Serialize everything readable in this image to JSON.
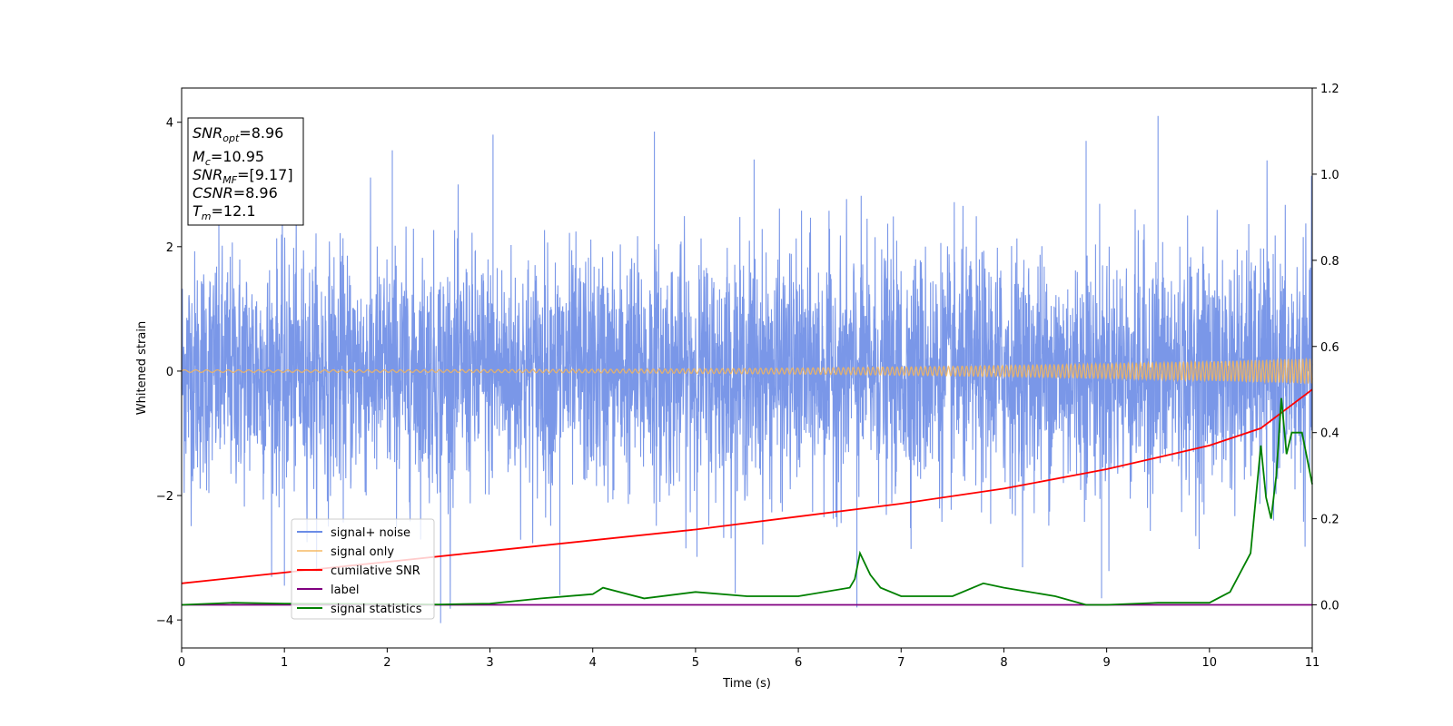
{
  "chart_data": {
    "type": "line",
    "title": "",
    "xlabel": "Time (s)",
    "ylabel": "Whitened strain",
    "xlim": [
      0,
      11
    ],
    "ylim": [
      -4.45,
      4.55
    ],
    "y2lim": [
      -0.1,
      1.2
    ],
    "x_ticks": [
      0,
      1,
      2,
      3,
      4,
      5,
      6,
      7,
      8,
      9,
      10,
      11
    ],
    "y_ticks": [
      -4,
      -2,
      0,
      2,
      4
    ],
    "y2_ticks": [
      "0.0",
      "0.2",
      "0.4",
      "0.6",
      "0.8",
      "1.0",
      "1.2"
    ],
    "grid": false,
    "legend_position": "lower-left",
    "colors": {
      "noise": "#6b8ce6",
      "signal": "#f5b55a",
      "snr": "#ff0000",
      "label": "#800080",
      "stats": "#008000"
    },
    "series": [
      {
        "name": "signal+ noise",
        "axis": "left",
        "description_values": "dense noise approx. amplitude ±2.5 with spikes to ±4",
        "max_spike": 4.1,
        "min_spike": -4.05
      },
      {
        "name": "signal only",
        "axis": "left",
        "envelope_start": 0.02,
        "envelope_end": 0.2
      },
      {
        "name": "cumilative SNR",
        "axis": "right",
        "x": [
          0,
          1,
          2,
          3,
          4,
          5,
          6,
          7,
          8,
          9,
          10,
          10.5,
          11
        ],
        "values": [
          0.05,
          0.075,
          0.1,
          0.125,
          0.15,
          0.175,
          0.205,
          0.235,
          0.27,
          0.315,
          0.37,
          0.41,
          0.5
        ]
      },
      {
        "name": "label",
        "axis": "right",
        "x": [
          0,
          11
        ],
        "values": [
          0,
          0
        ]
      },
      {
        "name": "signal statistics",
        "axis": "right",
        "x": [
          0,
          0.5,
          1,
          2,
          2.5,
          3,
          3.5,
          4,
          4.1,
          4.5,
          5,
          5.5,
          6,
          6.5,
          6.55,
          6.6,
          6.7,
          6.8,
          7,
          7.5,
          7.8,
          8,
          8.5,
          8.8,
          9,
          9.5,
          10,
          10.2,
          10.4,
          10.5,
          10.55,
          10.6,
          10.65,
          10.7,
          10.75,
          10.8,
          10.9,
          11
        ],
        "values": [
          0,
          0.005,
          0.003,
          0.002,
          0.001,
          0.003,
          0.015,
          0.025,
          0.04,
          0.015,
          0.03,
          0.02,
          0.02,
          0.04,
          0.06,
          0.12,
          0.07,
          0.04,
          0.02,
          0.02,
          0.05,
          0.04,
          0.02,
          0.0,
          0.0,
          0.005,
          0.005,
          0.03,
          0.12,
          0.37,
          0.25,
          0.2,
          0.3,
          0.48,
          0.35,
          0.4,
          0.4,
          0.28
        ]
      }
    ],
    "info_box": {
      "lines": [
        {
          "label": "SNR",
          "sub": "opt",
          "value": "=8.96"
        },
        {
          "label": "M",
          "sub": "c",
          "value": "=10.95"
        },
        {
          "label": "SNR",
          "sub": "MF",
          "value": "=[9.17]"
        },
        {
          "label": "CSNR",
          "sub": "",
          "value": "=8.96"
        },
        {
          "label": "T",
          "sub": "m",
          "value": "=12.1"
        }
      ]
    }
  }
}
